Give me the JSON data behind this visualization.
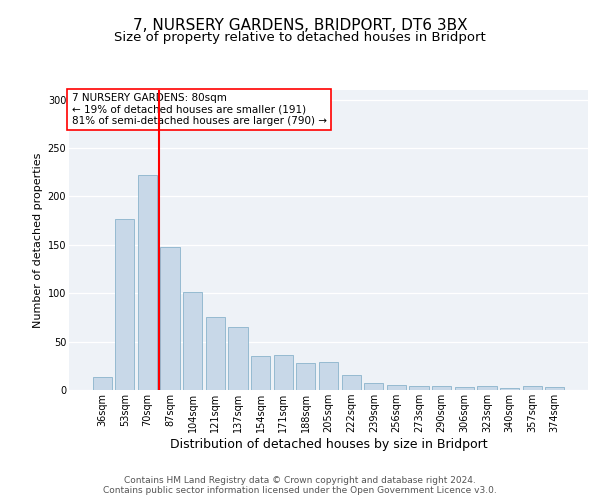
{
  "title1": "7, NURSERY GARDENS, BRIDPORT, DT6 3BX",
  "title2": "Size of property relative to detached houses in Bridport",
  "xlabel": "Distribution of detached houses by size in Bridport",
  "ylabel": "Number of detached properties",
  "categories": [
    "36sqm",
    "53sqm",
    "70sqm",
    "87sqm",
    "104sqm",
    "121sqm",
    "137sqm",
    "154sqm",
    "171sqm",
    "188sqm",
    "205sqm",
    "222sqm",
    "239sqm",
    "256sqm",
    "273sqm",
    "290sqm",
    "306sqm",
    "323sqm",
    "340sqm",
    "357sqm",
    "374sqm"
  ],
  "values": [
    13,
    177,
    222,
    148,
    101,
    75,
    65,
    35,
    36,
    28,
    29,
    15,
    7,
    5,
    4,
    4,
    3,
    4,
    2,
    4,
    3
  ],
  "bar_color": "#c8d8e8",
  "bar_edge_color": "#8ab4cc",
  "bar_width": 0.85,
  "red_line_x": 2.5,
  "annotation_text": "7 NURSERY GARDENS: 80sqm\n← 19% of detached houses are smaller (191)\n81% of semi-detached houses are larger (790) →",
  "annotation_box_color": "white",
  "annotation_box_edge": "red",
  "footer1": "Contains HM Land Registry data © Crown copyright and database right 2024.",
  "footer2": "Contains public sector information licensed under the Open Government Licence v3.0.",
  "ylim": [
    0,
    310
  ],
  "yticks": [
    0,
    50,
    100,
    150,
    200,
    250,
    300
  ],
  "bg_color": "#eef2f7",
  "title1_fontsize": 11,
  "title2_fontsize": 9.5,
  "xlabel_fontsize": 9,
  "ylabel_fontsize": 8,
  "tick_fontsize": 7,
  "footer_fontsize": 6.5,
  "annotation_fontsize": 7.5
}
